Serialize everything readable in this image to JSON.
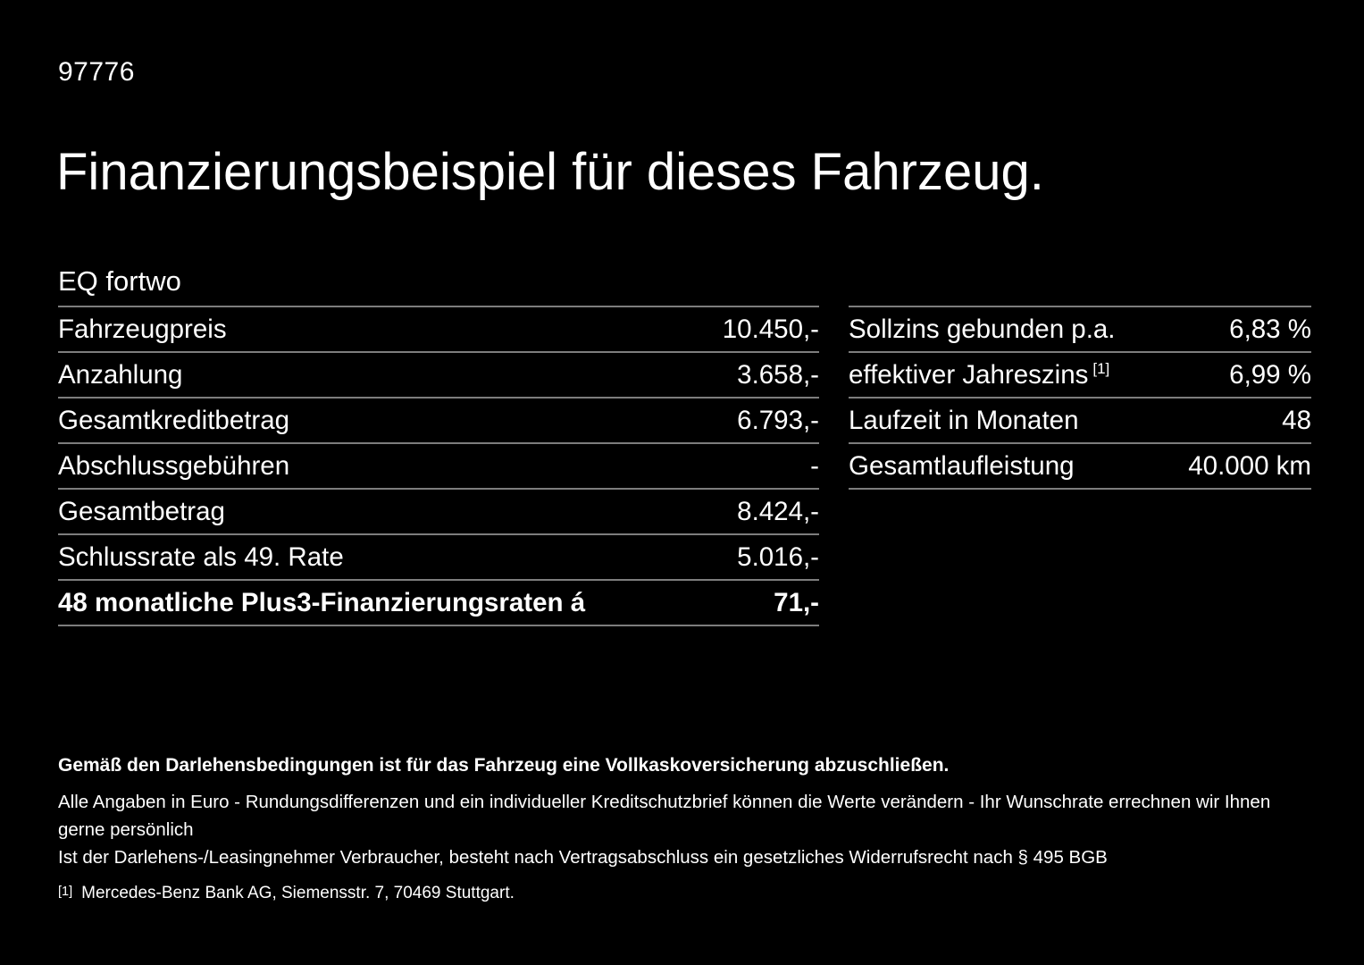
{
  "page": {
    "vehicle_id": "97776",
    "title": "Finanzierungsbeispiel für dieses Fahrzeug.",
    "model": "EQ fortwo"
  },
  "finance_table": {
    "rows": [
      {
        "label": "Fahrzeugpreis",
        "value": "10.450,-"
      },
      {
        "label": "Anzahlung",
        "value": "3.658,-"
      },
      {
        "label": "Gesamtkreditbetrag",
        "value": "6.793,-"
      },
      {
        "label": "Abschlussgebühren",
        "value": "-"
      },
      {
        "label": "Gesamtbetrag",
        "value": "8.424,-"
      },
      {
        "label": "Schlussrate als 49. Rate",
        "value": "5.016,-"
      },
      {
        "label": "48 monatliche Plus3-Finanzierungsraten á",
        "value": "71,-"
      }
    ]
  },
  "conditions_table": {
    "rows": [
      {
        "label": "Sollzins gebunden p.a.",
        "sup": "",
        "value": "6,83 %"
      },
      {
        "label": "effektiver Jahreszins",
        "sup": "[1]",
        "value": "6,99 %"
      },
      {
        "label": "Laufzeit in Monaten",
        "sup": "",
        "value": "48"
      },
      {
        "label": "Gesamtlaufleistung",
        "sup": "",
        "value": "40.000 km"
      }
    ]
  },
  "footer": {
    "insurance_note": "Gemäß den Darlehensbedingungen ist für das Fahrzeug eine Vollkaskoversicherung abzuschließen.",
    "note_line1": "Alle Angaben in Euro - Rundungsdifferenzen und ein individueller Kreditschutzbrief können die Werte verändern - Ihr Wunschrate errechnen wir Ihnen gerne persönlich",
    "note_line2": "Ist der Darlehens-/Leasingnehmer Verbraucher, besteht nach Vertragsabschluss ein gesetzliches Widerrufsrecht nach § 495 BGB",
    "footnote_marker": "[1]",
    "footnote_text": "Mercedes-Benz Bank AG, Siemensstr. 7, 70469 Stuttgart."
  },
  "colors": {
    "background": "#000000",
    "text": "#ffffff",
    "divider": "#7d7d7d"
  }
}
